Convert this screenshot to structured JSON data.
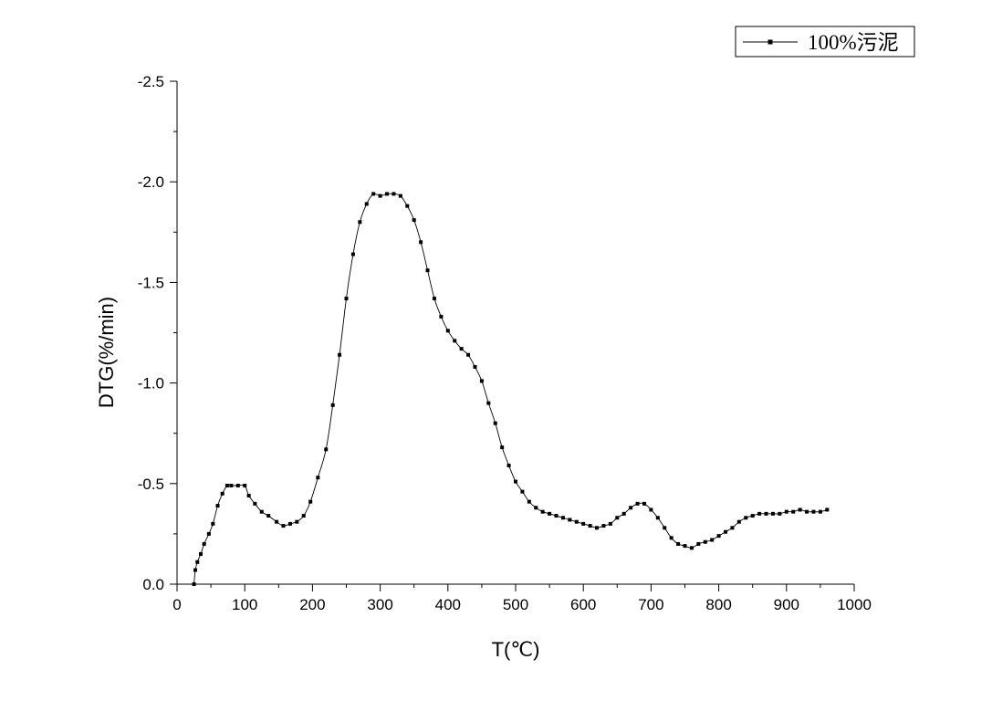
{
  "chart_data": {
    "type": "line",
    "title": "",
    "xlabel": "T(℃)",
    "ylabel": "DTG(%/min)",
    "xlim": [
      0,
      1000
    ],
    "ylim": [
      0,
      -2.5
    ],
    "y_axis_inverted": true,
    "x_ticks": [
      0,
      100,
      200,
      300,
      400,
      500,
      600,
      700,
      800,
      900,
      1000
    ],
    "x_tick_labels": [
      "0",
      "100",
      "200",
      "300",
      "400",
      "500",
      "600",
      "700",
      "800",
      "900",
      "1000"
    ],
    "y_ticks": [
      0.0,
      -0.5,
      -1.0,
      -1.5,
      -2.0,
      -2.5
    ],
    "y_tick_labels": [
      "0.0",
      "-0.5",
      "-1.0",
      "-1.5",
      "-2.0",
      "-2.5"
    ],
    "grid": false,
    "legend": {
      "position": "top-right",
      "entries": [
        "100%污泥"
      ]
    },
    "series": [
      {
        "name": "100%污泥",
        "color": "#000000",
        "marker": "square",
        "x": [
          25,
          27,
          30,
          35,
          40,
          47,
          53,
          60,
          67,
          74,
          80,
          90,
          100,
          106,
          115,
          125,
          135,
          147,
          157,
          167,
          177,
          187,
          197,
          208,
          220,
          230,
          240,
          250,
          260,
          270,
          280,
          290,
          300,
          310,
          320,
          330,
          340,
          350,
          360,
          370,
          380,
          390,
          400,
          410,
          420,
          430,
          440,
          450,
          460,
          470,
          480,
          490,
          500,
          510,
          520,
          530,
          540,
          550,
          560,
          570,
          580,
          590,
          600,
          610,
          620,
          630,
          640,
          650,
          660,
          670,
          680,
          690,
          700,
          710,
          720,
          730,
          740,
          750,
          760,
          770,
          780,
          790,
          800,
          810,
          820,
          830,
          840,
          850,
          860,
          870,
          880,
          890,
          900,
          910,
          920,
          930,
          940,
          950,
          960
        ],
        "y": [
          0,
          -0.07,
          -0.11,
          -0.15,
          -0.2,
          -0.25,
          -0.3,
          -0.39,
          -0.45,
          -0.49,
          -0.49,
          -0.49,
          -0.49,
          -0.44,
          -0.4,
          -0.36,
          -0.34,
          -0.31,
          -0.29,
          -0.3,
          -0.31,
          -0.34,
          -0.41,
          -0.53,
          -0.67,
          -0.89,
          -1.14,
          -1.42,
          -1.64,
          -1.8,
          -1.89,
          -1.94,
          -1.93,
          -1.94,
          -1.94,
          -1.93,
          -1.88,
          -1.81,
          -1.7,
          -1.56,
          -1.42,
          -1.33,
          -1.26,
          -1.21,
          -1.17,
          -1.14,
          -1.08,
          -1.01,
          -0.9,
          -0.8,
          -0.68,
          -0.59,
          -0.51,
          -0.46,
          -0.41,
          -0.38,
          -0.36,
          -0.35,
          -0.34,
          -0.33,
          -0.32,
          -0.31,
          -0.3,
          -0.29,
          -0.28,
          -0.29,
          -0.3,
          -0.33,
          -0.35,
          -0.38,
          -0.4,
          -0.4,
          -0.37,
          -0.33,
          -0.28,
          -0.23,
          -0.2,
          -0.19,
          -0.18,
          -0.2,
          -0.21,
          -0.22,
          -0.24,
          -0.26,
          -0.28,
          -0.31,
          -0.33,
          -0.34,
          -0.35,
          -0.35,
          -0.35,
          -0.35,
          -0.36,
          -0.36,
          -0.37,
          -0.36,
          -0.36,
          -0.36,
          -0.37
        ]
      }
    ]
  }
}
